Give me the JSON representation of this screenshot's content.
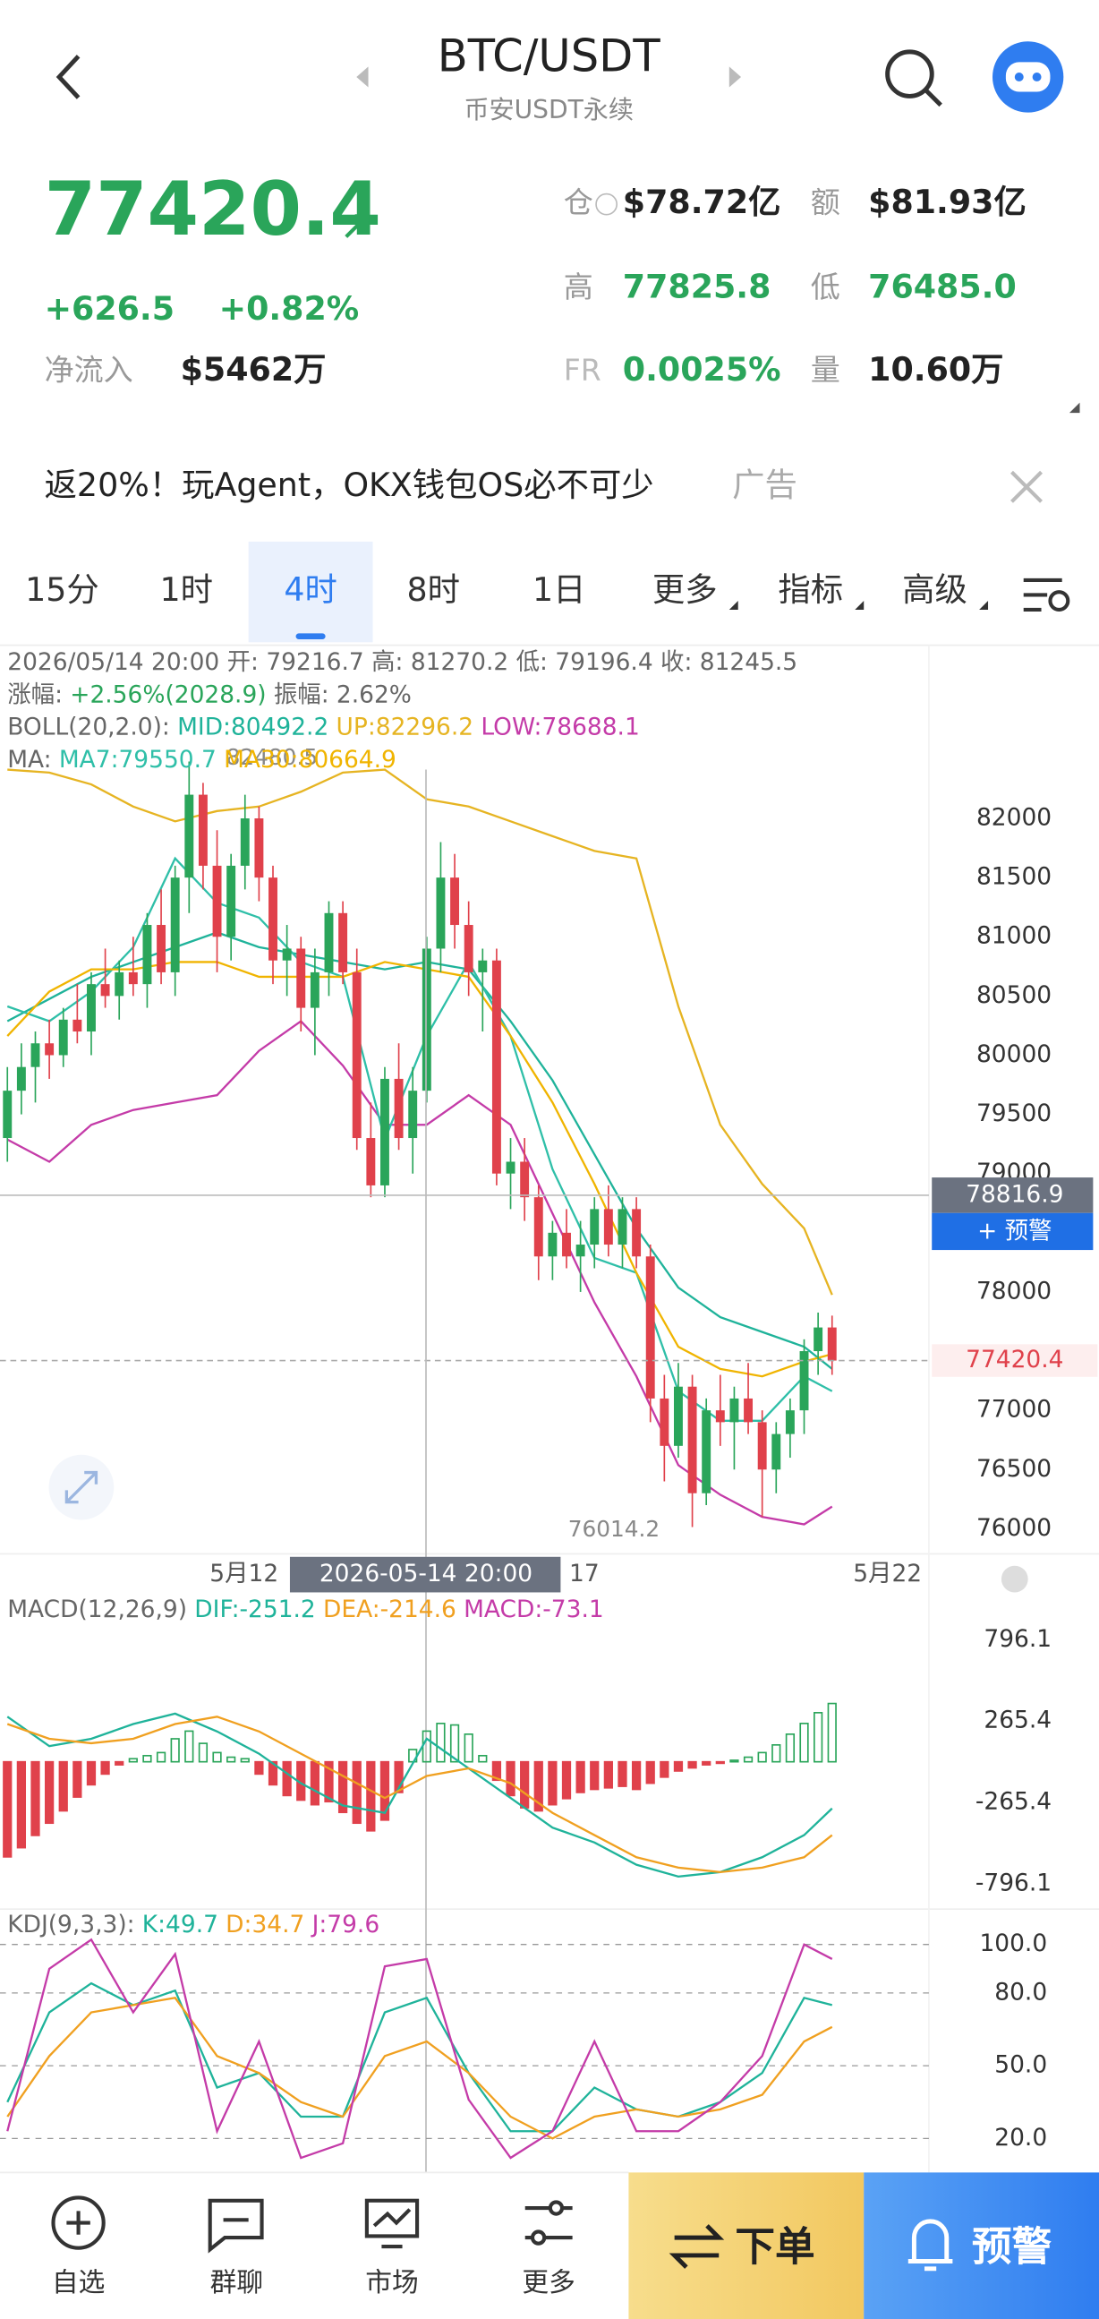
{
  "header": {
    "title": "BTC/USDT",
    "subtitle": "币安USDT永续"
  },
  "ticker": {
    "price": "77420.4",
    "change": "+626.5",
    "change_pct": "+0.82%",
    "netflow_label": "净流入",
    "netflow": "$5462万",
    "oi_label": "仓",
    "oi": "$78.72亿",
    "turnover_label": "额",
    "turnover": "$81.93亿",
    "high_label": "高",
    "high": "77825.8",
    "low_label": "低",
    "low": "76485.0",
    "fr_label": "FR",
    "fr": "0.0025%",
    "vol_label": "量",
    "vol": "10.60万"
  },
  "ad": {
    "text": "返20%！玩Agent，OKX钱包OS必不可少",
    "tag": "广告"
  },
  "tabs": [
    "15分",
    "1时",
    "4时",
    "8时",
    "1日",
    "更多",
    "指标",
    "高级"
  ],
  "nav": [
    "自选",
    "群聊",
    "市场",
    "更多",
    "下单",
    "预警"
  ],
  "chart_data": [
    {
      "type": "candlestick",
      "info": "2026/05/14 20:00 开: 79216.7 高: 81270.2 低: 79196.4 收: 81245.5",
      "change_label": "涨幅:",
      "change": "+2.56%(2028.9)",
      "amplitude_label": "振幅:",
      "amplitude": "2.62%",
      "boll_label": "BOLL(20,2.0):",
      "ma_label": "MA:",
      "up_color": "#2aa55a",
      "down_color": "#e0414b",
      "open": [
        79300,
        79700,
        79900,
        80100,
        80000,
        80300,
        80200,
        80600,
        80500,
        80700,
        80600,
        81100,
        80700,
        81500,
        82200,
        81600,
        81000,
        81600,
        82000,
        81500,
        80800,
        80900,
        80400,
        80700,
        81200,
        80700,
        79300,
        78900,
        79800,
        79300,
        79700,
        80900,
        81500,
        81100,
        80700,
        80800,
        79000,
        79100,
        78800,
        78300,
        78500,
        78300,
        78400,
        78700,
        78400,
        78700,
        78300,
        77100,
        76700,
        77200,
        76300,
        77000,
        76900,
        77100,
        76900,
        76500,
        76800,
        77000,
        77500,
        77700
      ],
      "high": [
        79900,
        80100,
        80200,
        80300,
        80400,
        80600,
        80700,
        80900,
        80800,
        81000,
        81200,
        81400,
        81600,
        82480.5,
        82300,
        81900,
        81700,
        82200,
        82100,
        81600,
        81100,
        81000,
        80900,
        81300,
        81300,
        80900,
        79600,
        79900,
        80100,
        79900,
        81000,
        81800,
        81700,
        81300,
        80900,
        80900,
        79300,
        79300,
        78900,
        78600,
        78700,
        78600,
        78800,
        78900,
        78800,
        78800,
        78400,
        77300,
        77400,
        77300,
        77100,
        77300,
        77200,
        77400,
        77000,
        76900,
        77100,
        77600,
        77825.8,
        77800
      ],
      "low": [
        79100,
        79500,
        79600,
        79800,
        79900,
        80100,
        80000,
        80400,
        80300,
        80500,
        80400,
        80600,
        80500,
        81200,
        81400,
        80700,
        80800,
        81400,
        81300,
        80600,
        80500,
        80200,
        80000,
        80500,
        80600,
        79200,
        78800,
        78800,
        79200,
        79000,
        79600,
        80700,
        80900,
        80500,
        80200,
        78900,
        78700,
        78600,
        78100,
        78100,
        78200,
        78000,
        78200,
        78300,
        78200,
        78200,
        76900,
        76400,
        76600,
        76014.2,
        76200,
        76700,
        76500,
        76800,
        76100,
        76300,
        76600,
        76800,
        77300,
        77300
      ],
      "close": [
        79700,
        79900,
        80100,
        80000,
        80300,
        80200,
        80600,
        80500,
        80700,
        80600,
        81100,
        80700,
        81500,
        82200,
        81600,
        81000,
        81600,
        82000,
        81500,
        80800,
        80900,
        80400,
        80700,
        81200,
        80700,
        79300,
        78900,
        79800,
        79300,
        79700,
        80900,
        81500,
        81100,
        80700,
        80800,
        79000,
        79100,
        78800,
        78300,
        78500,
        78300,
        78400,
        78700,
        78400,
        78700,
        78300,
        77100,
        76700,
        77200,
        76300,
        77000,
        76900,
        77100,
        76900,
        76500,
        76800,
        77000,
        77500,
        77700,
        77420.4
      ],
      "line_x": [
        0,
        3,
        6,
        9,
        12,
        15,
        18,
        21,
        24,
        27,
        30,
        33,
        36,
        39,
        42,
        45,
        48,
        51,
        54,
        57,
        59
      ],
      "boll": [
        {
          "name": "MID:80492.2",
          "color": "#1fb39a",
          "values": [
            80287,
            80475,
            80662,
            80787,
            80912,
            81037,
            80912,
            80850,
            80787,
            80725,
            80787,
            80725,
            80287,
            79787,
            79162,
            78537,
            78037,
            77787,
            77662,
            77537,
            77350
          ]
        },
        {
          "name": "UP:82296.2",
          "color": "#e6b422",
          "values": [
            82412,
            82387,
            82287,
            82100,
            81975,
            82062,
            82100,
            82225,
            82387,
            82412,
            82162,
            82100,
            81975,
            81850,
            81725,
            81662,
            80412,
            79412,
            78912,
            78537,
            77975
          ]
        },
        {
          "name": "LOW:78688.1",
          "color": "#c43ba8",
          "values": [
            79287,
            79100,
            79412,
            79537,
            79600,
            79662,
            80037,
            80287,
            79912,
            79412,
            79412,
            79662,
            79412,
            78662,
            77912,
            77287,
            76537,
            76287,
            76100,
            76037,
            76187
          ]
        }
      ],
      "ma": [
        {
          "name": "MA7:79550.7",
          "color": "#2fbfa8",
          "values": [
            80412,
            80287,
            80537,
            80912,
            81662,
            81287,
            81162,
            80787,
            80662,
            79287,
            80162,
            80787,
            80162,
            79037,
            78287,
            78162,
            77162,
            76912,
            76912,
            77287,
            77162
          ]
        },
        {
          "name": "MA30:80664.9",
          "color": "#f0b400",
          "values": [
            80162,
            80537,
            80725,
            80725,
            80787,
            80787,
            80662,
            80662,
            80662,
            80787,
            80725,
            80662,
            80162,
            79600,
            78912,
            78162,
            77537,
            77350,
            77287,
            77412,
            77475
          ]
        }
      ],
      "ylim": [
        75787.5,
        83412.5
      ],
      "yticks": [
        82000,
        81500,
        81000,
        80500,
        80000,
        79500,
        79000,
        78000,
        77000,
        76500,
        76000
      ],
      "crosshair_price": 78816.9,
      "crosshair_time": "2026-05-14 20:00",
      "alert_label": "+ 预警",
      "x_labels": [
        "5月12",
        "17",
        "5月22"
      ]
    },
    {
      "type": "macd",
      "label": "MACD(12,26,9)",
      "ylim": [
        -960,
        1114
      ],
      "yticks": [
        796.1,
        265.4,
        -265.4,
        -796.1
      ],
      "series": [
        {
          "name": "DIF:-251.2",
          "color": "#1fb39a",
          "values": [
            294,
            102,
            150,
            246,
            314,
            198,
            53,
            -140,
            -285,
            -333,
            150,
            -43,
            -236,
            -429,
            -526,
            -671,
            -748,
            -719,
            -622,
            -478,
            -304
          ]
        },
        {
          "name": "DEA:-214.6",
          "color": "#f0a020",
          "values": [
            246,
            150,
            121,
            150,
            246,
            294,
            198,
            53,
            -92,
            -236,
            -92,
            -43,
            -140,
            -333,
            -478,
            -622,
            -690,
            -719,
            -690,
            -622,
            -478
          ]
        }
      ],
      "histogram": {
        "name": "MACD:-73.1",
        "color": "#c43ba8",
        "values": [
          -620,
          -560,
          -480,
          -400,
          -320,
          -230,
          -150,
          -80,
          -20,
          20,
          40,
          60,
          150,
          200,
          120,
          60,
          30,
          20,
          -80,
          -150,
          -220,
          -250,
          -280,
          -260,
          -330,
          -400,
          -450,
          -380,
          -200,
          80,
          200,
          250,
          240,
          180,
          40,
          -120,
          -220,
          -300,
          -320,
          -280,
          -240,
          -200,
          -180,
          -170,
          -160,
          -180,
          -140,
          -100,
          -60,
          -40,
          -20,
          -10,
          10,
          30,
          60,
          110,
          180,
          250,
          320,
          380
        ]
      }
    },
    {
      "type": "kdj",
      "label": "KDJ(9,3,3):",
      "ylim": [
        7.8,
        114.6
      ],
      "yticks": [
        {
          "value": 100,
          "label": "100.0"
        },
        {
          "value": 80,
          "label": "80.0"
        },
        {
          "value": 50,
          "label": "50.0"
        },
        {
          "value": 20,
          "label": "20.0"
        }
      ],
      "series": [
        {
          "name": "K:49.7",
          "color": "#1fb39a",
          "values": [
            35,
            72,
            84,
            75,
            81,
            41,
            47,
            29,
            29,
            72,
            78,
            47,
            23,
            23,
            41,
            32,
            29,
            35,
            47,
            78,
            75
          ]
        },
        {
          "name": "D:34.7",
          "color": "#f0a020",
          "values": [
            29,
            54,
            72,
            75,
            78,
            54,
            47,
            35,
            29,
            54,
            60,
            47,
            29,
            20,
            29,
            32,
            29,
            32,
            38,
            60,
            66
          ]
        },
        {
          "name": "J:79.6",
          "color": "#c43ba8",
          "values": [
            23,
            90,
            102,
            72,
            96,
            23,
            60,
            12,
            18,
            91,
            94,
            36,
            12,
            23,
            60,
            23,
            23,
            35,
            54,
            100,
            94
          ]
        }
      ]
    }
  ]
}
